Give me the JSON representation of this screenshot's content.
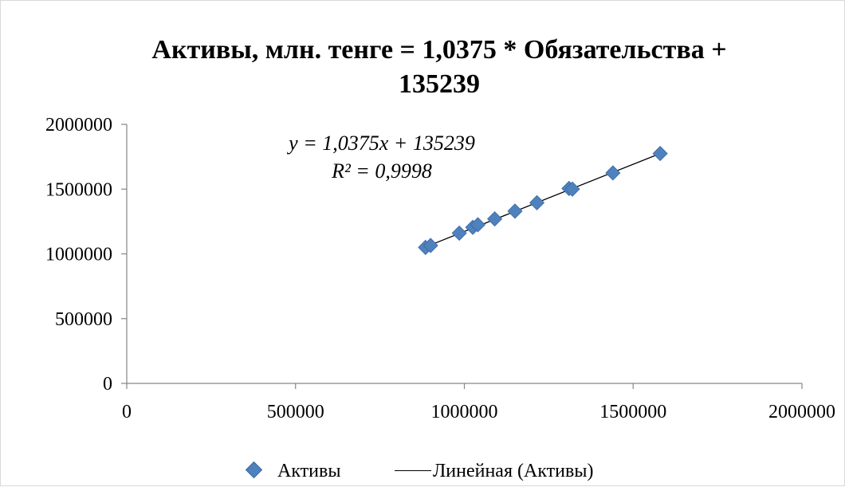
{
  "chart_data": {
    "type": "scatter",
    "title_lines": [
      "Активы, млн. тенге = 1,0375 * Обязательства +",
      "135239"
    ],
    "xlabel": "",
    "ylabel": "",
    "xlim": [
      0,
      2000000
    ],
    "ylim": [
      0,
      2000000
    ],
    "x_ticks": [
      0,
      500000,
      1000000,
      1500000,
      2000000
    ],
    "y_ticks": [
      0,
      500000,
      1000000,
      1500000,
      2000000
    ],
    "x_tick_labels": [
      "0",
      "500000",
      "1000000",
      "1500000",
      "2000000"
    ],
    "y_tick_labels": [
      "0",
      "500000",
      "1000000",
      "1500000",
      "2000000"
    ],
    "grid": false,
    "legend_position": "bottom",
    "series": [
      {
        "name": "Активы",
        "marker": "diamond",
        "color": "#4f81bd",
        "points": [
          {
            "x": 885000,
            "y": 1050000
          },
          {
            "x": 900000,
            "y": 1065000
          },
          {
            "x": 985000,
            "y": 1160000
          },
          {
            "x": 1025000,
            "y": 1205000
          },
          {
            "x": 1040000,
            "y": 1225000
          },
          {
            "x": 1090000,
            "y": 1270000
          },
          {
            "x": 1150000,
            "y": 1330000
          },
          {
            "x": 1215000,
            "y": 1395000
          },
          {
            "x": 1310000,
            "y": 1505000
          },
          {
            "x": 1320000,
            "y": 1500000
          },
          {
            "x": 1440000,
            "y": 1625000
          },
          {
            "x": 1580000,
            "y": 1775000
          }
        ]
      }
    ],
    "trendline": {
      "name": "Линейная (Активы)",
      "slope": 1.0375,
      "intercept": 135239,
      "x_range": [
        885000,
        1580000
      ],
      "color": "#000000",
      "equation_text": "y = 1,0375x + 135239",
      "r2_text": "R² = 0,9998"
    }
  }
}
